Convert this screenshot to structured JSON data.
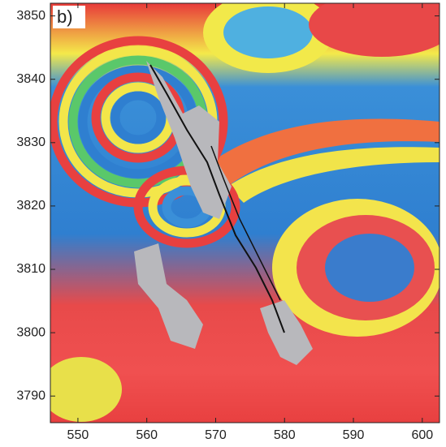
{
  "panel_label": "b)",
  "x_axis": {
    "lim": [
      546,
      602.5
    ],
    "ticks": [
      550,
      560,
      570,
      580,
      590,
      600
    ]
  },
  "y_axis": {
    "lim": [
      3785.8,
      3852
    ],
    "ticks": [
      3790,
      3800,
      3810,
      3820,
      3830,
      3840,
      3850
    ]
  }
}
